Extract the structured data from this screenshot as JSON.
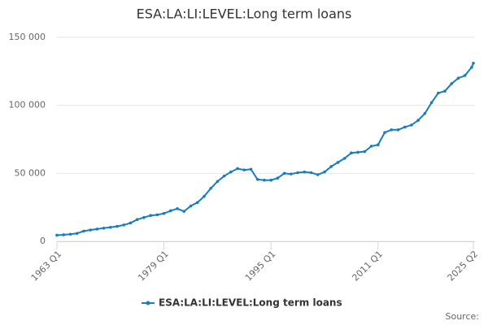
{
  "chart_data": {
    "type": "line",
    "title": "ESA:LA:LI:LEVEL:Long term loans",
    "source": "Source:",
    "x": [
      1963,
      1964,
      1965,
      1966,
      1967,
      1968,
      1969,
      1970,
      1971,
      1972,
      1973,
      1974,
      1975,
      1976,
      1977,
      1978,
      1979,
      1980,
      1981,
      1982,
      1983,
      1984,
      1985,
      1986,
      1987,
      1988,
      1989,
      1990,
      1991,
      1992,
      1993,
      1994,
      1995,
      1996,
      1997,
      1998,
      1999,
      2000,
      2001,
      2002,
      2003,
      2004,
      2005,
      2006,
      2007,
      2008,
      2009,
      2010,
      2011,
      2012,
      2013,
      2014,
      2015,
      2016,
      2017,
      2018,
      2019,
      2020,
      2021,
      2022,
      2023,
      2024,
      2025,
      2025.25
    ],
    "series": [
      {
        "name": "ESA:LA:LI:LEVEL:Long term loans",
        "color": "#1a7dbd",
        "values": [
          4500,
          4800,
          5200,
          5800,
          7500,
          8300,
          9000,
          9700,
          10300,
          11000,
          12000,
          13500,
          16000,
          17500,
          19000,
          19500,
          20500,
          22500,
          24000,
          22000,
          26000,
          28500,
          33000,
          39000,
          44000,
          48000,
          51000,
          53500,
          52500,
          53000,
          45500,
          45000,
          45000,
          46500,
          50000,
          49500,
          50500,
          51000,
          50500,
          49000,
          51000,
          55000,
          58000,
          61000,
          65000,
          65500,
          66000,
          70000,
          71000,
          80000,
          82000,
          82000,
          84000,
          85500,
          89000,
          94000,
          102000,
          109000,
          110500,
          116000,
          120000,
          122000,
          128000,
          131000
        ]
      }
    ],
    "xlim": [
      1963,
      2025.25
    ],
    "xticks": [
      {
        "value": 1963,
        "label": "1963 Q1"
      },
      {
        "value": 1979,
        "label": "1979 Q1"
      },
      {
        "value": 1995,
        "label": "1995 Q1"
      },
      {
        "value": 2011,
        "label": "2011 Q1"
      },
      {
        "value": 2025.25,
        "label": "2025 Q2"
      }
    ],
    "ylim": [
      0,
      150000
    ],
    "yticks": [
      0,
      {
        "value": 50000,
        "label": "50 000"
      },
      {
        "value": 100000,
        "label": "100 000"
      },
      {
        "value": 150000,
        "label": "150 000"
      }
    ],
    "grid": true,
    "legend": "bottom"
  }
}
